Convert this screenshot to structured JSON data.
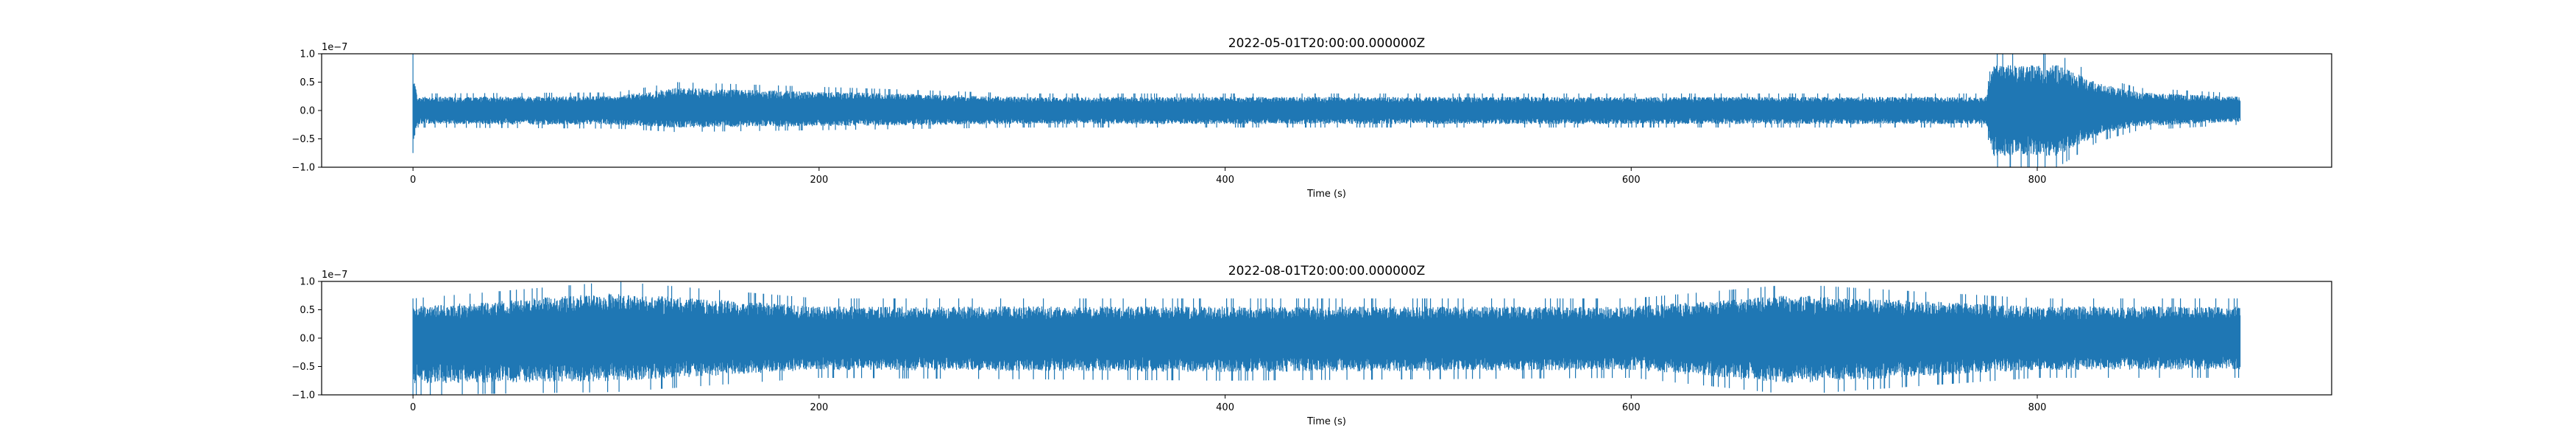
{
  "figure": {
    "background": "#ffffff"
  },
  "chart_data": [
    {
      "type": "line",
      "title": "2022-05-01T20:00:00.000000Z",
      "xlabel": "Time (s)",
      "ylabel": "",
      "y_offset_label": "1e−7",
      "xlim": [
        -45,
        945
      ],
      "ylim": [
        -1.0,
        1.0
      ],
      "x_ticks": [
        0,
        200,
        400,
        600,
        800
      ],
      "x_tick_labels": [
        "0",
        "200",
        "400",
        "600",
        "800"
      ],
      "y_ticks": [
        1.0,
        0.5,
        0.0,
        -0.5,
        -1.0
      ],
      "y_tick_labels": [
        "1.0",
        "0.5",
        "0.0",
        "−0.5",
        "−1.0"
      ],
      "grid": false,
      "color": "#1f77b4",
      "series": [
        {
          "x_range": [
            0,
            900
          ],
          "envelope": [
            {
              "x": 0,
              "min": -0.75,
              "max": 1.0
            },
            {
              "x": 2,
              "min": -0.3,
              "max": 0.3
            },
            {
              "x": 100,
              "min": -0.32,
              "max": 0.32
            },
            {
              "x": 130,
              "min": -0.38,
              "max": 0.5
            },
            {
              "x": 300,
              "min": -0.3,
              "max": 0.3
            },
            {
              "x": 500,
              "min": -0.3,
              "max": 0.3
            },
            {
              "x": 700,
              "min": -0.3,
              "max": 0.3
            },
            {
              "x": 775,
              "min": -0.3,
              "max": 0.3
            },
            {
              "x": 778,
              "min": -1.0,
              "max": 1.0
            },
            {
              "x": 810,
              "min": -1.0,
              "max": 1.0
            },
            {
              "x": 830,
              "min": -0.55,
              "max": 0.6
            },
            {
              "x": 850,
              "min": -0.35,
              "max": 0.4
            },
            {
              "x": 900,
              "min": -0.25,
              "max": 0.3
            }
          ]
        }
      ]
    },
    {
      "type": "line",
      "title": "2022-08-01T20:00:00.000000Z",
      "xlabel": "Time (s)",
      "ylabel": "",
      "y_offset_label": "1e−7",
      "xlim": [
        -45,
        945
      ],
      "ylim": [
        -1.0,
        1.0
      ],
      "x_ticks": [
        0,
        200,
        400,
        600,
        800
      ],
      "x_tick_labels": [
        "0",
        "200",
        "400",
        "600",
        "800"
      ],
      "y_ticks": [
        1.0,
        0.5,
        0.0,
        -0.5,
        -1.0
      ],
      "y_tick_labels": [
        "1.0",
        "0.5",
        "0.0",
        "−0.5",
        "−1.0"
      ],
      "grid": false,
      "color": "#1f77b4",
      "series": [
        {
          "x_range": [
            0,
            900
          ],
          "envelope": [
            {
              "x": 0,
              "min": -1.0,
              "max": 0.7
            },
            {
              "x": 100,
              "min": -0.95,
              "max": 1.0
            },
            {
              "x": 200,
              "min": -0.7,
              "max": 0.7
            },
            {
              "x": 400,
              "min": -0.75,
              "max": 0.7
            },
            {
              "x": 600,
              "min": -0.7,
              "max": 0.7
            },
            {
              "x": 680,
              "min": -1.0,
              "max": 0.95
            },
            {
              "x": 800,
              "min": -0.7,
              "max": 0.7
            },
            {
              "x": 900,
              "min": -0.7,
              "max": 0.7
            }
          ]
        }
      ]
    }
  ]
}
